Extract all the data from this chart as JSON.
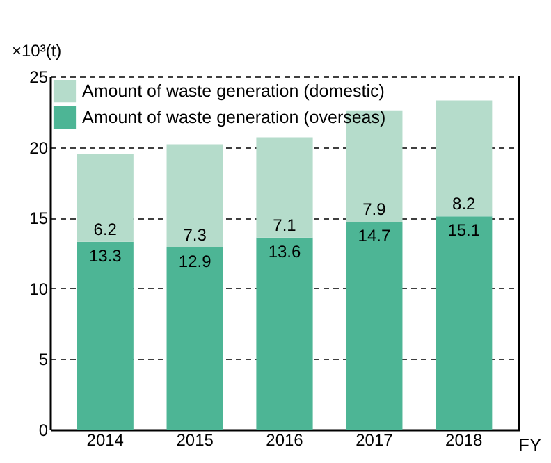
{
  "chart_data": {
    "type": "bar",
    "stacked": true,
    "categories": [
      "2014",
      "2015",
      "2016",
      "2017",
      "2018"
    ],
    "series": [
      {
        "name": "Amount of waste generation (overseas)",
        "color": "#4db595",
        "values": [
          13.3,
          12.9,
          13.6,
          14.7,
          15.1
        ]
      },
      {
        "name": "Amount of waste generation (domestic)",
        "color": "#b5dccb",
        "values": [
          6.2,
          7.3,
          7.1,
          7.9,
          8.2
        ]
      }
    ],
    "ylabel": "×10³(t)",
    "xlabel": "FY",
    "ylim": [
      0,
      25
    ],
    "yticks": [
      0,
      5,
      10,
      15,
      20,
      25
    ],
    "grid": "y",
    "legend": "top left",
    "data_labels": true
  }
}
